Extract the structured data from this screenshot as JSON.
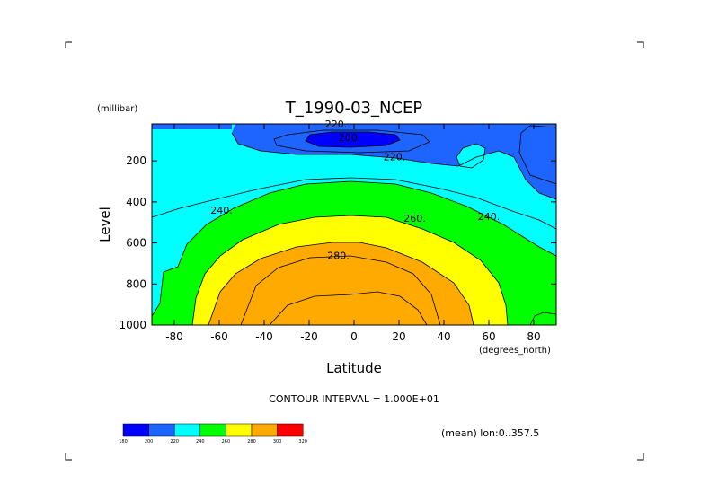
{
  "chart_data": {
    "type": "contour",
    "title": "T_1990-03_NCEP",
    "xlabel": "Latitude",
    "ylabel": "Level",
    "x_units": "(degrees_north)",
    "y_units": "(millibar)",
    "xlim": [
      -90,
      90
    ],
    "ylim": [
      1000,
      20
    ],
    "x_ticks": [
      -80,
      -60,
      -40,
      -20,
      0,
      20,
      40,
      60,
      80
    ],
    "y_ticks": [
      200,
      400,
      600,
      800,
      1000
    ],
    "contour_levels": [
      180,
      200,
      220,
      240,
      260,
      280,
      300,
      320
    ],
    "contour_labels": [
      {
        "text": "200.",
        "lat": -2,
        "lev": 85
      },
      {
        "text": "220.",
        "lat": 18,
        "lev": 180
      },
      {
        "text": "240.",
        "lat": -59,
        "lev": 440
      },
      {
        "text": "240.",
        "lat": 60,
        "lev": 470
      },
      {
        "text": "260.",
        "lat": 27,
        "lev": 480
      },
      {
        "text": "280.",
        "lat": -7,
        "lev": 660
      },
      {
        "text": "220.",
        "lat": -8,
        "lev": 20
      }
    ],
    "legend": {
      "values": [
        "180",
        "200",
        "220",
        "240",
        "260",
        "280",
        "300",
        "320"
      ],
      "colors": [
        "#0000ff",
        "#1e64ff",
        "#00ffff",
        "#00ff00",
        "#ffff00",
        "#ffaa00",
        "#ff0000"
      ]
    },
    "contour_interval_text": "CONTOUR INTERVAL = 1.000E+01",
    "mean_text": "(mean) lon:0..357.5",
    "fill_colors": {
      "t180_200": "#0000ff",
      "t200_220": "#1e64ff",
      "t220_240": "#00ffff",
      "t240_260": "#00ff00",
      "t260_280": "#ffff00",
      "t280_300": "#ffaa00"
    }
  }
}
